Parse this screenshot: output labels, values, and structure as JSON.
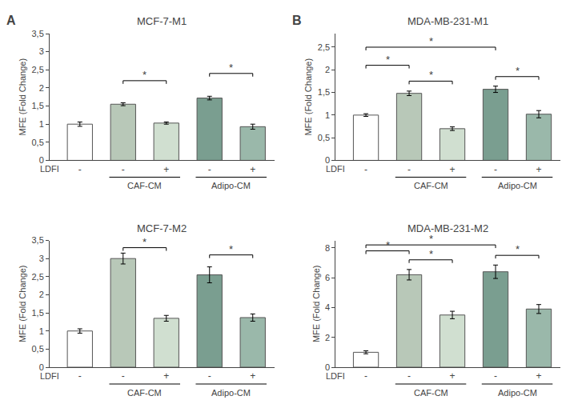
{
  "chart_data": [
    {
      "type": "bar",
      "title": "MCF-7-M1",
      "panel": "A",
      "ylabel": "MFE (Fold Change)",
      "xlabel": "LDFI",
      "categories": [
        "-",
        "-",
        "+",
        "-",
        "+"
      ],
      "values": [
        1.0,
        1.55,
        1.03,
        1.72,
        0.93
      ],
      "errors": [
        0.06,
        0.04,
        0.03,
        0.05,
        0.07
      ],
      "colors": [
        "white",
        "#b8c8b8",
        "#d0dfd0",
        "#7a9e90",
        "#9ab8aa"
      ],
      "ylim": [
        0,
        3.5
      ],
      "yticks": [
        0,
        {
          "value": 0.5,
          "label": "0,5"
        },
        1,
        {
          "value": 1.5,
          "label": "1,5"
        },
        2,
        {
          "value": 2.5,
          "label": "2,5"
        },
        3,
        {
          "value": 3.5,
          "label": "3,5"
        }
      ],
      "grid": false,
      "groups": [
        {
          "text": "CAF-CM",
          "from": 1,
          "to": 2
        },
        {
          "text": "Adipo-CM",
          "from": 3,
          "to": 4
        }
      ],
      "annotations": [
        {
          "text": "*",
          "from": 1,
          "to": 2,
          "y": 2.2
        },
        {
          "text": "*",
          "from": 3,
          "to": 4,
          "y": 2.4
        }
      ]
    },
    {
      "type": "bar",
      "title": "MDA-MB-231-M1",
      "panel": "B",
      "ylabel": "MFE (Fold Change)",
      "xlabel": "LDFI",
      "categories": [
        "-",
        "-",
        "+",
        "-",
        "+"
      ],
      "values": [
        1.0,
        1.48,
        0.7,
        1.57,
        1.02
      ],
      "errors": [
        0.03,
        0.05,
        0.04,
        0.07,
        0.08
      ],
      "colors": [
        "white",
        "#b8c8b8",
        "#d0dfd0",
        "#7a9e90",
        "#9ab8aa"
      ],
      "ylim": [
        0,
        2.8
      ],
      "yticks": [
        0,
        {
          "value": 0.5,
          "label": "0,5"
        },
        1,
        {
          "value": 1.5,
          "label": "1,5"
        },
        2,
        {
          "value": 2.5,
          "label": "2,5"
        }
      ],
      "grid": false,
      "groups": [
        {
          "text": "CAF-CM",
          "from": 1,
          "to": 2
        },
        {
          "text": "Adipo-CM",
          "from": 3,
          "to": 4
        }
      ],
      "annotations": [
        {
          "text": "*",
          "from": 1,
          "to": 2,
          "y": 1.75
        },
        {
          "text": "*",
          "from": 3,
          "to": 4,
          "y": 1.85
        },
        {
          "text": "*",
          "from": 0,
          "to": 1,
          "y": 2.1
        },
        {
          "text": "*",
          "from": 0,
          "to": 3,
          "y": 2.5
        }
      ]
    },
    {
      "type": "bar",
      "title": "MCF-7-M2",
      "ylabel": "MFE (Fold Change)",
      "xlabel": "LDFI",
      "categories": [
        "-",
        "-",
        "+",
        "-",
        "+"
      ],
      "values": [
        1.0,
        3.0,
        1.35,
        2.55,
        1.37
      ],
      "errors": [
        0.06,
        0.15,
        0.08,
        0.22,
        0.1
      ],
      "colors": [
        "white",
        "#b8c8b8",
        "#d0dfd0",
        "#7a9e90",
        "#9ab8aa"
      ],
      "ylim": [
        0,
        3.5
      ],
      "yticks": [
        0,
        {
          "value": 0.5,
          "label": "0,5"
        },
        1,
        {
          "value": 1.5,
          "label": "1,5"
        },
        2,
        {
          "value": 2.5,
          "label": "2,5"
        },
        3,
        {
          "value": 3.5,
          "label": "3,5"
        }
      ],
      "grid": false,
      "groups": [
        {
          "text": "CAF-CM",
          "from": 1,
          "to": 2
        },
        {
          "text": "Adipo-CM",
          "from": 3,
          "to": 4
        }
      ],
      "annotations": [
        {
          "text": "*",
          "from": 1,
          "to": 2,
          "y": 3.3
        },
        {
          "text": "*",
          "from": 3,
          "to": 4,
          "y": 3.1
        }
      ]
    },
    {
      "type": "bar",
      "title": "MDA-MB-231-M2",
      "ylabel": "MFE (Fold Change)",
      "xlabel": "LDFI",
      "categories": [
        "-",
        "-",
        "+",
        "-",
        "+"
      ],
      "values": [
        1.0,
        6.2,
        3.5,
        6.4,
        3.9
      ],
      "errors": [
        0.1,
        0.35,
        0.25,
        0.45,
        0.3
      ],
      "colors": [
        "white",
        "#b8c8b8",
        "#d0dfd0",
        "#7a9e90",
        "#9ab8aa"
      ],
      "ylim": [
        0,
        8.5
      ],
      "yticks": [
        0,
        2,
        4,
        6,
        8
      ],
      "grid": false,
      "groups": [
        {
          "text": "CAF-CM",
          "from": 1,
          "to": 2
        },
        {
          "text": "Adipo-CM",
          "from": 3,
          "to": 4
        }
      ],
      "annotations": [
        {
          "text": "*",
          "from": 1,
          "to": 2,
          "y": 7.2
        },
        {
          "text": "*",
          "from": 3,
          "to": 4,
          "y": 7.5
        },
        {
          "text": "*",
          "from": 0,
          "to": 1,
          "y": 7.8
        },
        {
          "text": "*",
          "from": 0,
          "to": 3,
          "y": 8.2
        }
      ]
    }
  ]
}
